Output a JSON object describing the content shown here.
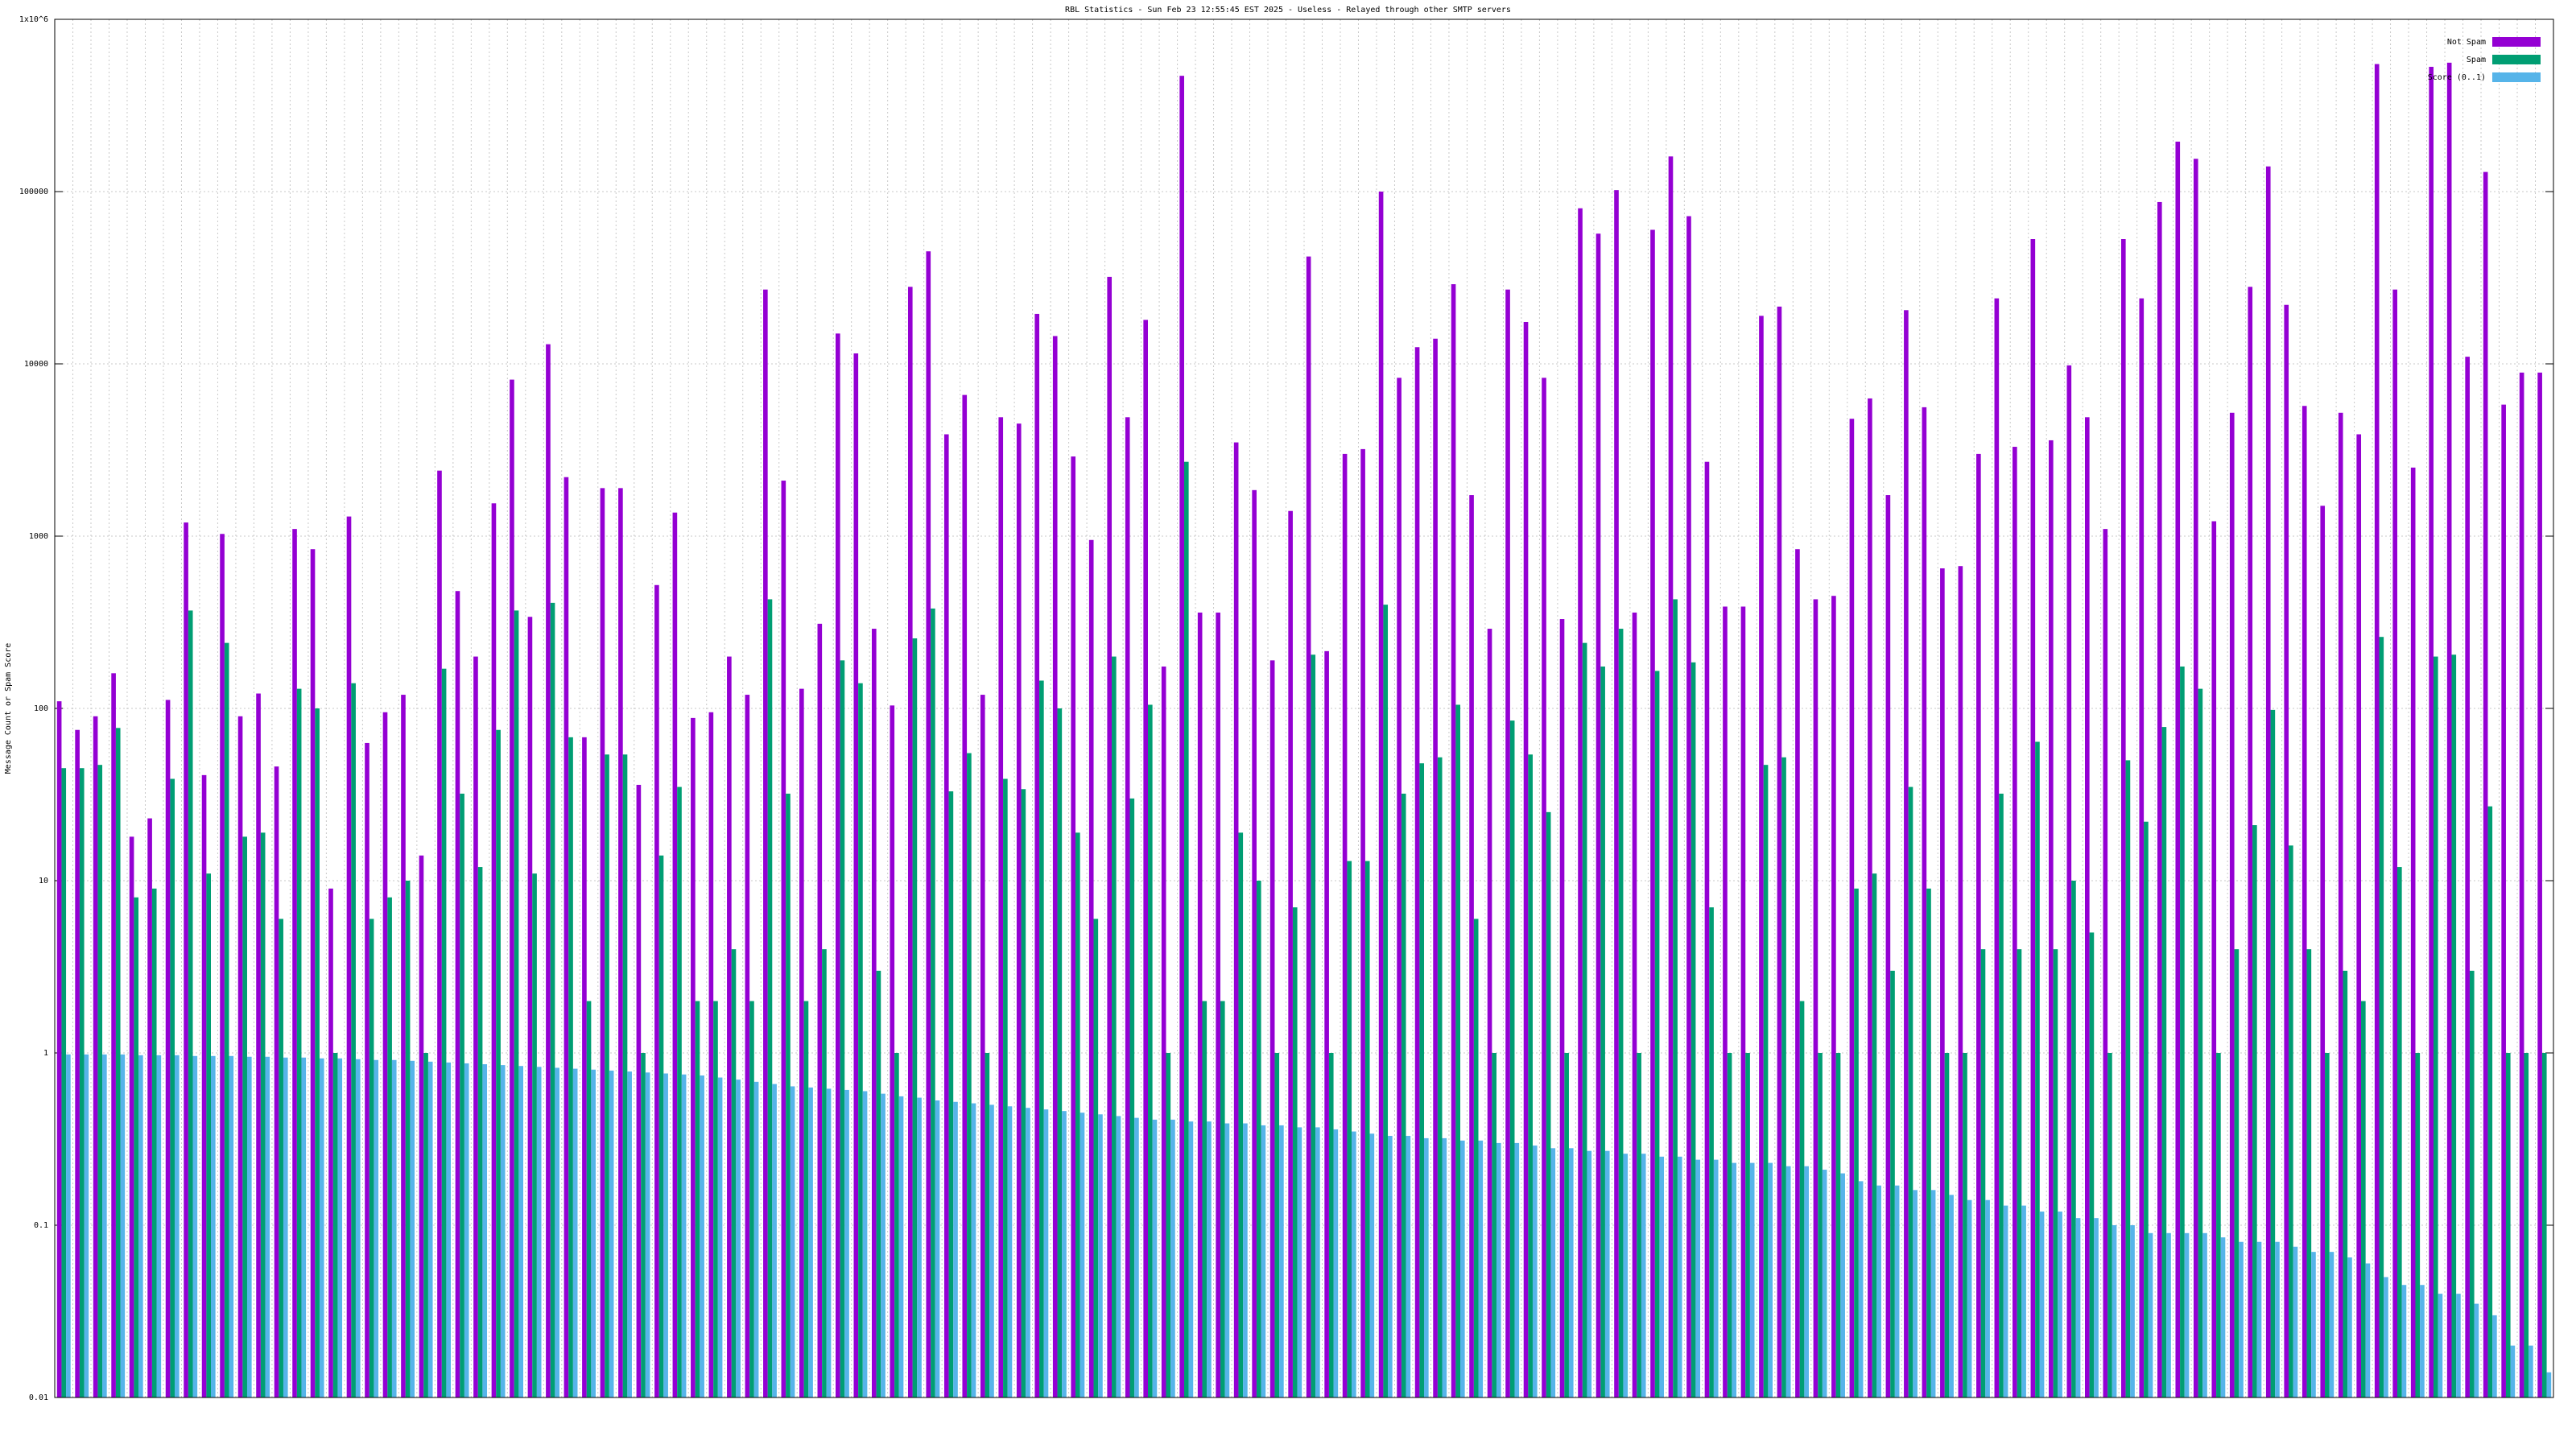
{
  "chart_data": {
    "type": "bar",
    "log_scale": true,
    "grid": true,
    "legend": "top-right",
    "title": "RBL Statistics - Sun Feb 23 12:55:45 EST 2025 - Useless - Relayed through other SMTP servers",
    "y_label": "Message Count or Spam Score",
    "ylim": [
      0.01,
      1000000
    ],
    "yticks": [
      0.01,
      0.1,
      1,
      10,
      100,
      1000,
      10000,
      100000,
      {
        "value": 1000000,
        "label": "1x10^6"
      }
    ],
    "categories": [
      null,
      null,
      null,
      null,
      null,
      null,
      null,
      null,
      null,
      null,
      null,
      null,
      null,
      null,
      null,
      null,
      null,
      null,
      null,
      null,
      null,
      null,
      null,
      null,
      null,
      null,
      null,
      null,
      null,
      null,
      null,
      null,
      null,
      null,
      null,
      null,
      null,
      null,
      null,
      null,
      null,
      null,
      null,
      null,
      null,
      null,
      null,
      null,
      null,
      null,
      null,
      null,
      null,
      null,
      null,
      null,
      null,
      null,
      null,
      null,
      null,
      null,
      null,
      null,
      null,
      null,
      null,
      null,
      null,
      null,
      null,
      null,
      null,
      null,
      null,
      null,
      null,
      null,
      null,
      null,
      null,
      null,
      null,
      null,
      null,
      null,
      null,
      null,
      null,
      null,
      null,
      null,
      null,
      null,
      null,
      null,
      null,
      null,
      null,
      null,
      null,
      null,
      null,
      null,
      null,
      null,
      null,
      null,
      null,
      null,
      null,
      null,
      null,
      null,
      null,
      null,
      null,
      null,
      null,
      null,
      null,
      null,
      null,
      null,
      null,
      null,
      null,
      null,
      null,
      null,
      null,
      null,
      null,
      null,
      null,
      null,
      null,
      null
    ],
    "series": [
      {
        "name": "Not Spam",
        "color": "#9400d3",
        "values": [
          110,
          75,
          90,
          160,
          18,
          23,
          112,
          1200,
          41,
          1030,
          90,
          122,
          46,
          1100,
          840,
          9,
          1300,
          63,
          95,
          120,
          14,
          2400,
          480,
          200,
          1550,
          8100,
          340,
          13000,
          2200,
          68,
          1900,
          1900,
          36,
          520,
          1370,
          88,
          95,
          200,
          120,
          27000,
          2100,
          130,
          310,
          15000,
          11500,
          290,
          104,
          28000,
          45000,
          3900,
          6600,
          120,
          4900,
          4500,
          19500,
          14500,
          2900,
          950,
          32000,
          4900,
          18000,
          175,
          470000,
          360,
          360,
          3500,
          1850,
          190,
          1400,
          42000,
          215,
          3000,
          3200,
          100000,
          8300,
          12500,
          14000,
          29000,
          1730,
          290,
          27000,
          17500,
          8300,
          330,
          80000,
          57000,
          102000,
          360,
          60000,
          160000,
          72000,
          2700,
          390,
          390,
          19000,
          21500,
          840,
          430,
          450,
          4800,
          6300,
          1730,
          20500,
          5600,
          650,
          670,
          3000,
          24000,
          3300,
          53000,
          3600,
          9800,
          4900,
          1100,
          53000,
          24000,
          87000,
          195000,
          155000,
          1220,
          5200,
          28000,
          140000,
          22000,
          5700,
          1500,
          5200,
          3900,
          550000,
          27000,
          2500,
          530000,
          560000,
          11000,
          130000,
          5800,
          8900,
          8900
        ]
      },
      {
        "name": "Spam",
        "color": "#009e73",
        "values": [
          45,
          45,
          47,
          77,
          8,
          9,
          39,
          370,
          11,
          240,
          18,
          19,
          6,
          130,
          100,
          1,
          140,
          6,
          8,
          10,
          1,
          170,
          32,
          12,
          75,
          370,
          11,
          410,
          68,
          2,
          54,
          54,
          1,
          14,
          35,
          2,
          2,
          4,
          2,
          430,
          32,
          2,
          4,
          190,
          140,
          3,
          1,
          255,
          380,
          33,
          55,
          1,
          39,
          34,
          145,
          100,
          19,
          6,
          200,
          30,
          105,
          1,
          2700,
          2,
          2,
          19,
          10,
          1,
          7,
          205,
          1,
          13,
          13,
          400,
          32,
          48,
          52,
          105,
          6,
          1,
          85,
          54,
          25,
          1,
          240,
          175,
          290,
          1,
          165,
          430,
          185,
          7,
          1,
          1,
          47,
          52,
          2,
          1,
          1,
          9,
          11,
          3,
          35,
          9,
          1,
          1,
          4,
          32,
          4,
          64,
          4,
          10,
          5,
          1,
          50,
          22,
          78,
          175,
          130,
          1,
          4,
          21,
          98,
          16,
          4,
          1,
          3,
          2,
          260,
          12,
          1,
          200,
          205,
          3,
          27,
          1,
          1,
          1
        ]
      },
      {
        "name": "Score (0..1)",
        "color": "#56b4e9",
        "values": [
          0.98,
          0.98,
          0.98,
          0.98,
          0.97,
          0.97,
          0.97,
          0.96,
          0.96,
          0.96,
          0.95,
          0.95,
          0.94,
          0.94,
          0.93,
          0.93,
          0.92,
          0.91,
          0.91,
          0.9,
          0.89,
          0.88,
          0.87,
          0.86,
          0.85,
          0.84,
          0.83,
          0.82,
          0.81,
          0.8,
          0.79,
          0.78,
          0.77,
          0.76,
          0.75,
          0.74,
          0.72,
          0.7,
          0.68,
          0.66,
          0.64,
          0.63,
          0.62,
          0.61,
          0.6,
          0.58,
          0.56,
          0.55,
          0.53,
          0.52,
          0.51,
          0.5,
          0.49,
          0.48,
          0.47,
          0.46,
          0.45,
          0.44,
          0.43,
          0.42,
          0.41,
          0.41,
          0.4,
          0.4,
          0.39,
          0.39,
          0.38,
          0.38,
          0.37,
          0.37,
          0.36,
          0.35,
          0.34,
          0.33,
          0.33,
          0.32,
          0.32,
          0.31,
          0.31,
          0.3,
          0.3,
          0.29,
          0.28,
          0.28,
          0.27,
          0.27,
          0.26,
          0.26,
          0.25,
          0.25,
          0.24,
          0.24,
          0.23,
          0.23,
          0.23,
          0.22,
          0.22,
          0.21,
          0.2,
          0.18,
          0.17,
          0.17,
          0.16,
          0.16,
          0.15,
          0.14,
          0.14,
          0.13,
          0.13,
          0.12,
          0.12,
          0.11,
          0.11,
          0.1,
          0.1,
          0.09,
          0.09,
          0.09,
          0.09,
          0.085,
          0.08,
          0.08,
          0.08,
          0.075,
          0.07,
          0.07,
          0.065,
          0.06,
          0.05,
          0.045,
          0.045,
          0.04,
          0.04,
          0.035,
          0.03,
          0.02,
          0.02,
          0.014
        ]
      }
    ]
  }
}
